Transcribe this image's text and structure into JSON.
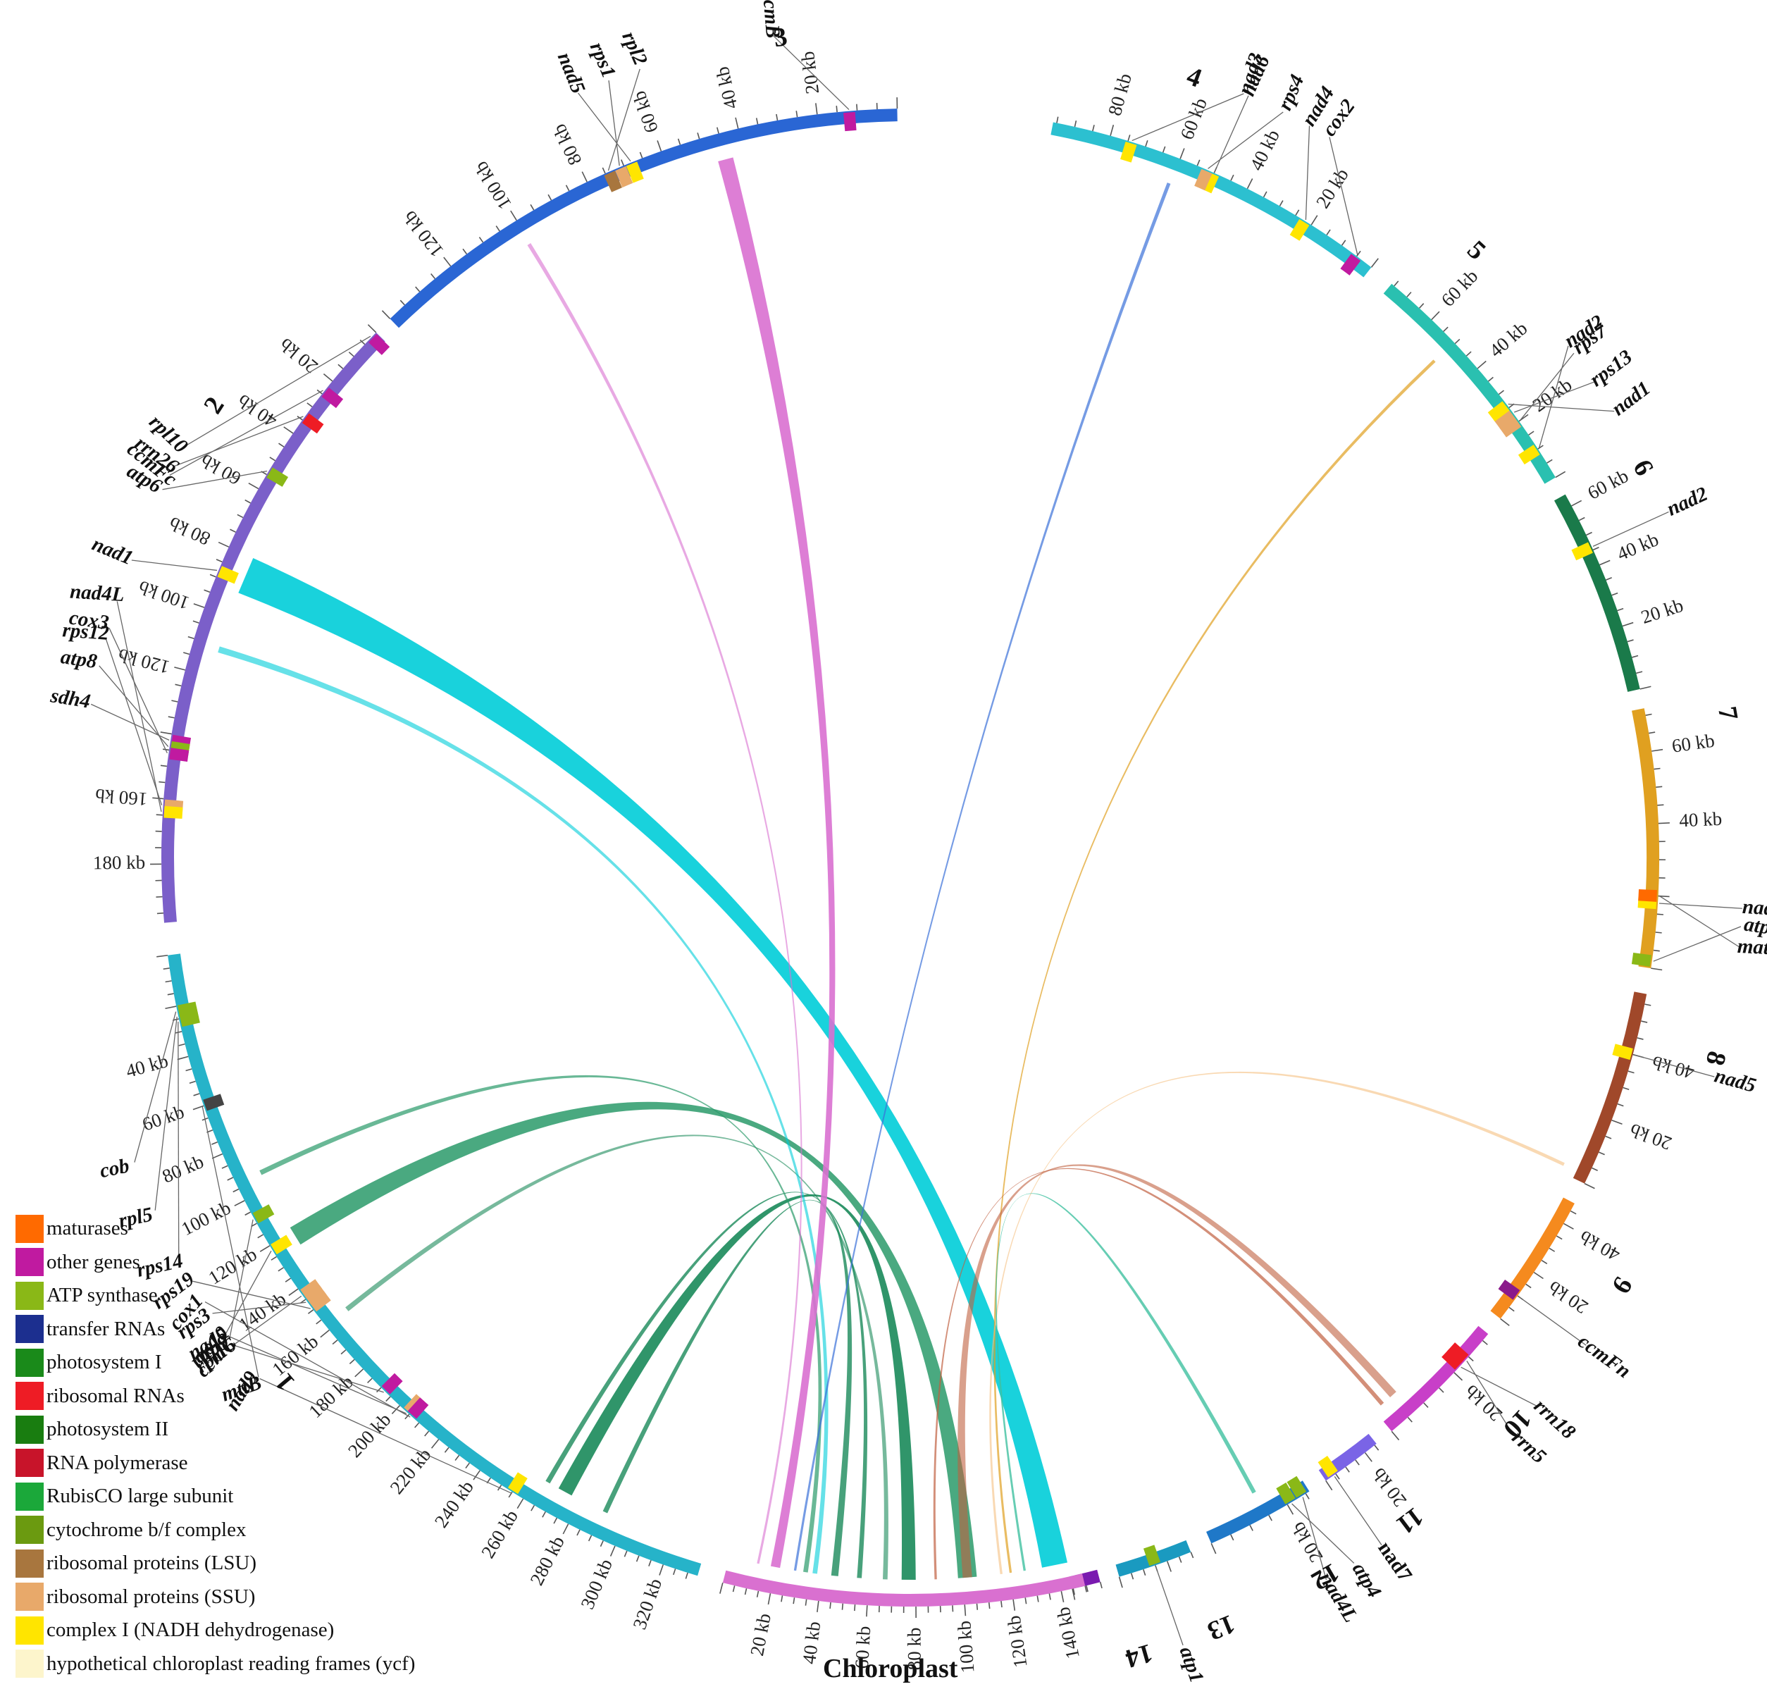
{
  "organelle_label": "Chloroplast",
  "chromosomes": [
    {
      "id": "1",
      "color": "#26b3c9",
      "length_kb": 334,
      "ticks": [
        40,
        60,
        80,
        100,
        120,
        140,
        160,
        180,
        200,
        220,
        240,
        260,
        280,
        300,
        320
      ],
      "genes": [
        {
          "name": "mttB",
          "pos": 60,
          "color": "#444444",
          "italic": true
        },
        {
          "name": "rps14",
          "pos": 26,
          "color": "#8ab817",
          "italic": true
        },
        {
          "name": "rpl5",
          "pos": 24,
          "color": "#8ab817",
          "italic": true
        },
        {
          "name": "cob",
          "pos": 22,
          "color": "#8ab817",
          "italic": true
        },
        {
          "name": "atp9",
          "pos": 108,
          "color": "#8ab817",
          "italic": true
        },
        {
          "name": "nad5",
          "pos": 122,
          "color": "#ffe500",
          "italic": true
        },
        {
          "name": "rpl16",
          "pos": 143,
          "color": "#e8a96a",
          "italic": true
        },
        {
          "name": "rps3",
          "pos": 146,
          "color": "#e8a96a",
          "italic": true
        },
        {
          "name": "rps19",
          "pos": 149,
          "color": "#e8a96a",
          "italic": true
        },
        {
          "name": "ccmC",
          "pos": 192,
          "color": "#c01aa0",
          "italic": true
        },
        {
          "name": "rps10",
          "pos": 204,
          "color": "#e8a96a",
          "italic": true
        },
        {
          "name": "cox1",
          "pos": 206,
          "color": "#c01aa0",
          "italic": true
        },
        {
          "name": "nad9",
          "pos": 255,
          "color": "#ffe500",
          "italic": true
        }
      ]
    },
    {
      "id": "2",
      "color": "#7b5fc9",
      "length_kb": 198,
      "ticks": [
        20,
        40,
        60,
        80,
        100,
        120,
        160,
        180
      ],
      "genes": [
        {
          "name": "rpl10",
          "pos": 2,
          "color": "#c01aa0",
          "italic": true
        },
        {
          "name": "ccmFc",
          "pos": 24,
          "color": "#c01aa0",
          "italic": true
        },
        {
          "name": "rrn26",
          "pos": 34,
          "color": "#ee1c25",
          "italic": true
        },
        {
          "name": "atp6",
          "pos": 54,
          "color": "#8ab817",
          "italic": true
        },
        {
          "name": "nad1",
          "pos": 88,
          "color": "#ffe500",
          "italic": true
        },
        {
          "name": "sdh4",
          "pos": 142,
          "color": "#c01aa0",
          "italic": true
        },
        {
          "name": "atp8",
          "pos": 144,
          "color": "#8ab817",
          "italic": true
        },
        {
          "name": "cox3",
          "pos": 146,
          "color": "#c01aa0",
          "italic": true
        },
        {
          "name": "rps12",
          "pos": 162,
          "color": "#e8a96a",
          "italic": true
        },
        {
          "name": "nad4L",
          "pos": 164,
          "color": "#ffe500",
          "italic": true
        }
      ]
    },
    {
      "id": "3",
      "color": "#2a66d4",
      "length_kb": 140,
      "ticks": [
        20,
        40,
        60,
        80,
        100,
        120
      ],
      "genes": [
        {
          "name": "ccmB",
          "pos": 12,
          "color": "#c01aa0",
          "italic": true
        },
        {
          "name": "nad5",
          "pos": 68,
          "color": "#ffe500",
          "italic": true
        },
        {
          "name": "rps1",
          "pos": 71,
          "color": "#e8a96a",
          "italic": true
        },
        {
          "name": "rpl2",
          "pos": 74,
          "color": "#a8763e",
          "italic": true
        }
      ]
    },
    {
      "id": "4",
      "color": "#2cc0d0",
      "length_kb": 96,
      "ticks": [
        20,
        40,
        60,
        80
      ],
      "genes": [
        {
          "name": "cox2",
          "pos": 5,
          "color": "#c01aa0",
          "italic": true
        },
        {
          "name": "nad4",
          "pos": 22,
          "color": "#ffe500",
          "italic": true
        },
        {
          "name": "nad6",
          "pos": 50,
          "color": "#ffe500",
          "italic": true
        },
        {
          "name": "rps4",
          "pos": 52,
          "color": "#e8a96a",
          "italic": true
        },
        {
          "name": "nad3",
          "pos": 74,
          "color": "#ffe500",
          "italic": true
        }
      ]
    },
    {
      "id": "5",
      "color": "#2ac0b0",
      "length_kb": 76,
      "ticks": [
        20,
        40,
        60
      ],
      "genes": [
        {
          "name": "nad2",
          "pos": 10,
          "color": "#ffe500",
          "italic": true
        },
        {
          "name": "rps7",
          "pos": 20,
          "color": "#e8a96a",
          "italic": true
        },
        {
          "name": "rps13",
          "pos": 23,
          "color": "#e8a96a",
          "italic": true
        },
        {
          "name": "nad1",
          "pos": 26,
          "color": "#ffe500",
          "italic": true
        }
      ]
    },
    {
      "id": "6",
      "color": "#1a7a4a",
      "length_kb": 64,
      "ticks": [
        20,
        40,
        60
      ],
      "genes": [
        {
          "name": "nad2",
          "pos": 46,
          "color": "#ffe500",
          "italic": true
        }
      ]
    },
    {
      "id": "7",
      "color": "#e0a020",
      "length_kb": 72,
      "ticks": [
        40,
        60
      ],
      "genes": [
        {
          "name": "atp9",
          "pos": 2,
          "color": "#8ab817",
          "italic": true
        },
        {
          "name": "nad1",
          "pos": 18,
          "color": "#ffe500",
          "italic": true
        },
        {
          "name": "matR",
          "pos": 20,
          "color": "#ff6a00",
          "italic": true
        }
      ]
    },
    {
      "id": "8",
      "color": "#a0482a",
      "length_kb": 58,
      "ticks": [
        20,
        40
      ],
      "genes": [
        {
          "name": "nad5",
          "pos": 40,
          "color": "#ffe500",
          "italic": true
        }
      ]
    },
    {
      "id": "9",
      "color": "#f58a1e",
      "length_kb": 48,
      "ticks": [
        20,
        40
      ],
      "genes": [
        {
          "name": "ccmFn",
          "pos": 10,
          "color": "#8b1a8b",
          "italic": true
        }
      ]
    },
    {
      "id": "10",
      "color": "#c83fc8",
      "length_kb": 32,
      "ticks": [
        20
      ],
      "genes": [
        {
          "name": "rrn18",
          "pos": 22,
          "color": "#ee1c25",
          "italic": true
        },
        {
          "name": "rrn5",
          "pos": 24,
          "color": "#ee1c25",
          "italic": true
        }
      ]
    },
    {
      "id": "11",
      "color": "#7a64e6",
      "length_kb": 26,
      "ticks": [
        20
      ],
      "genes": [
        {
          "name": "nad7",
          "pos": 4,
          "color": "#ffe500",
          "italic": false
        }
      ]
    },
    {
      "id": "12",
      "color": "#1f78c8",
      "length_kb": 26,
      "ticks": [
        20
      ],
      "genes": [
        {
          "name": "atp4",
          "pos": 21,
          "color": "#8ab817",
          "italic": true
        },
        {
          "name": "nad4L",
          "pos": 24,
          "color": "#8ab817",
          "italic": true
        }
      ]
    },
    {
      "id": "13",
      "color": "#1a9ac0",
      "length_kb": 30,
      "ticks": [],
      "genes": [
        {
          "name": "atp1",
          "pos": 15,
          "color": "#8ab817",
          "italic": true
        }
      ]
    },
    {
      "id": "14",
      "color": "#7a1ab0",
      "length_kb": 10,
      "ticks": [],
      "genes": []
    },
    {
      "id": "CP",
      "color": "#d970d0",
      "length_kb": 150,
      "ticks": [
        20,
        40,
        60,
        80,
        100,
        120,
        140
      ],
      "genes": []
    }
  ],
  "links": [
    {
      "from": {
        "chr": "1",
        "start": 118,
        "end": 126
      },
      "to": {
        "chr": "CP",
        "start": 98,
        "end": 106
      },
      "color": "#2a9a6a",
      "opacity": 0.85
    },
    {
      "from": {
        "chr": "1",
        "start": 270,
        "end": 276
      },
      "to": {
        "chr": "CP",
        "start": 74,
        "end": 80
      },
      "color": "#1a8a5a",
      "opacity": 0.9
    },
    {
      "from": {
        "chr": "1",
        "start": 290,
        "end": 292
      },
      "to": {
        "chr": "CP",
        "start": 44,
        "end": 47
      },
      "color": "#1a8a5a",
      "opacity": 0.8
    },
    {
      "from": {
        "chr": "1",
        "start": 264,
        "end": 266
      },
      "to": {
        "chr": "CP",
        "start": 55,
        "end": 57
      },
      "color": "#1a8a5a",
      "opacity": 0.8
    },
    {
      "from": {
        "chr": "1",
        "start": 157,
        "end": 159
      },
      "to": {
        "chr": "CP",
        "start": 66,
        "end": 68
      },
      "color": "#1a8a5a",
      "opacity": 0.6
    },
    {
      "from": {
        "chr": "1",
        "start": 92,
        "end": 94
      },
      "to": {
        "chr": "CP",
        "start": 32,
        "end": 34
      },
      "color": "#2a9a6a",
      "opacity": 0.7
    },
    {
      "from": {
        "chr": "2",
        "start": 80,
        "end": 92
      },
      "to": {
        "chr": "CP",
        "start": 134,
        "end": 145
      },
      "color": "#00cdd8",
      "opacity": 0.9
    },
    {
      "from": {
        "chr": "2",
        "start": 110,
        "end": 112
      },
      "to": {
        "chr": "CP",
        "start": 36,
        "end": 38
      },
      "color": "#00cdd8",
      "opacity": 0.6
    },
    {
      "from": {
        "chr": "3",
        "start": 43,
        "end": 47
      },
      "to": {
        "chr": "CP",
        "start": 18,
        "end": 22
      },
      "color": "#d970d0",
      "opacity": 0.9
    },
    {
      "from": {
        "chr": "3",
        "start": 100,
        "end": 101
      },
      "to": {
        "chr": "CP",
        "start": 12,
        "end": 13
      },
      "color": "#d970d0",
      "opacity": 0.6
    },
    {
      "from": {
        "chr": "5",
        "start": 50,
        "end": 51
      },
      "to": {
        "chr": "CP",
        "start": 120,
        "end": 121
      },
      "color": "#e0a020",
      "opacity": 0.7
    },
    {
      "from": {
        "chr": "8",
        "start": 2,
        "end": 3
      },
      "to": {
        "chr": "CP",
        "start": 116,
        "end": 117
      },
      "color": "#f5c080",
      "opacity": 0.6
    },
    {
      "from": {
        "chr": "10",
        "start": 2,
        "end": 3
      },
      "to": {
        "chr": "CP",
        "start": 88,
        "end": 89
      },
      "color": "#c06040",
      "opacity": 0.7
    },
    {
      "from": {
        "chr": "10",
        "start": 5,
        "end": 7
      },
      "to": {
        "chr": "CP",
        "start": 100,
        "end": 104
      },
      "color": "#c06040",
      "opacity": 0.6
    },
    {
      "from": {
        "chr": "12",
        "start": 14,
        "end": 15
      },
      "to": {
        "chr": "CP",
        "start": 126,
        "end": 127
      },
      "color": "#40c0a0",
      "opacity": 0.8
    },
    {
      "from": {
        "chr": "4",
        "start": 60,
        "end": 61
      },
      "to": {
        "chr": "CP",
        "start": 28,
        "end": 29
      },
      "color": "#3a70d8",
      "opacity": 0.7
    }
  ],
  "legend": [
    {
      "label": "maturases",
      "color": "#ff6a00"
    },
    {
      "label": "other genes",
      "color": "#c01aa0"
    },
    {
      "label": "ATP synthase",
      "color": "#8ab817"
    },
    {
      "label": "transfer RNAs",
      "color": "#1c2f8f"
    },
    {
      "label": "photosystem I",
      "color": "#1a8a1a"
    },
    {
      "label": "ribosomal RNAs",
      "color": "#ee1c25"
    },
    {
      "label": "photosystem II",
      "color": "#197d10"
    },
    {
      "label": "RNA polymerase",
      "color": "#c8142a"
    },
    {
      "label": "RubisCO large subunit",
      "color": "#1ba83a"
    },
    {
      "label": "cytochrome b/f complex",
      "color": "#6b9a10"
    },
    {
      "label": "ribosomal proteins (LSU)",
      "color": "#a8763e"
    },
    {
      "label": "ribosomal proteins (SSU)",
      "color": "#e8a96a"
    },
    {
      "label": "complex I (NADH dehydrogenase)",
      "color": "#ffe500"
    },
    {
      "label": "hypothetical chloroplast reading frames (ycf)",
      "color": "#fdf5cc"
    }
  ]
}
